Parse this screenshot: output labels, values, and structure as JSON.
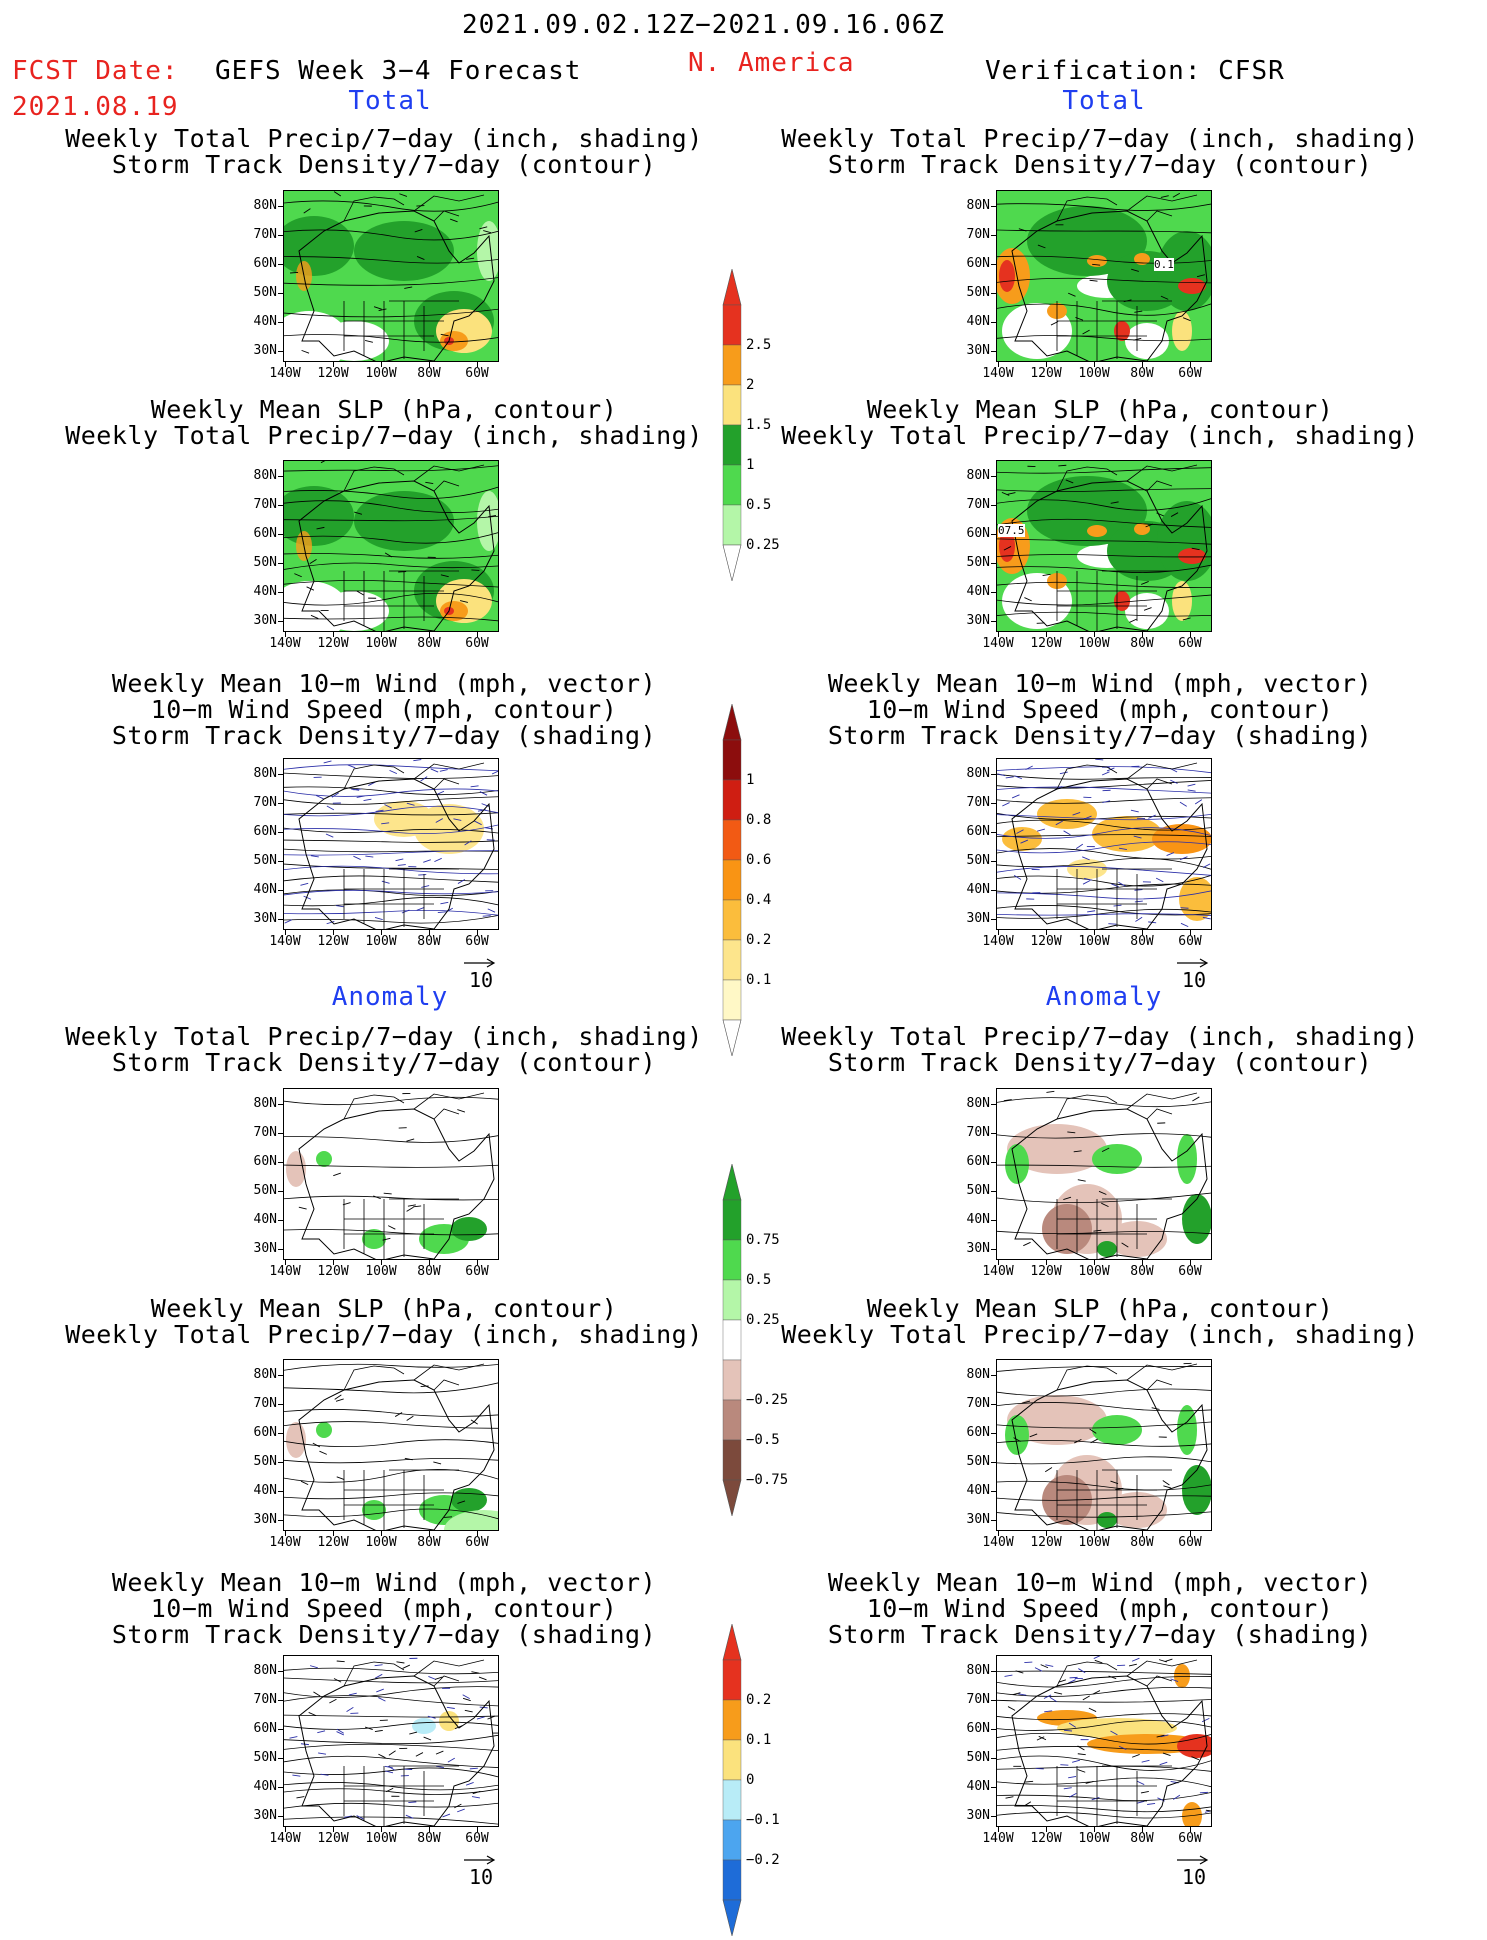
{
  "header": {
    "date_range": "2021.09.02.12Z−2021.09.16.06Z",
    "fcst_label": "FCST Date:",
    "fcst_date": "2021.08.19",
    "forecast_title": "GEFS Week 3−4 Forecast",
    "region": "N. America",
    "verification": "Verification: CFSR"
  },
  "sections": {
    "total": "Total",
    "anomaly": "Anomaly"
  },
  "titles": {
    "precip_storm": [
      "Weekly Total Precip/7−day (inch, shading)",
      "Storm Track Density/7−day (contour)"
    ],
    "slp_precip": [
      "Weekly Mean SLP (hPa, contour)",
      "Weekly Total Precip/7−day (inch, shading)"
    ],
    "wind_storm": [
      "Weekly Mean 10−m Wind (mph, vector)",
      "10−m Wind Speed (mph, contour)",
      "Storm Track Density/7−day (shading)"
    ]
  },
  "axes": {
    "lat_labels": [
      "80N",
      "70N",
      "60N",
      "50N",
      "40N",
      "30N"
    ],
    "lon_labels": [
      "140W",
      "120W",
      "100W",
      "80W",
      "60W"
    ]
  },
  "map_labels": {
    "storm_contour": "0.1",
    "slp_contour": "07.5"
  },
  "vector_reference": "10",
  "colorbars": {
    "precip_total": {
      "labels": [
        "2.5",
        "2",
        "1.5",
        "1",
        "0.5",
        "0.25"
      ],
      "colors": [
        "#e5321f",
        "#f79c1b",
        "#fbe27d",
        "#23a12b",
        "#4fd94e",
        "#b4f6a8"
      ]
    },
    "storm_total": {
      "labels": [
        "1",
        "0.8",
        "0.6",
        "0.4",
        "0.2",
        "0.1"
      ],
      "colors": [
        "#8c0d0d",
        "#cf1e12",
        "#f25a14",
        "#f99414",
        "#fbbd3c",
        "#fde58c",
        "#fff8c6"
      ]
    },
    "precip_anom": {
      "labels": [
        "0.75",
        "0.5",
        "0.25",
        "−0.25",
        "−0.5",
        "−0.75"
      ],
      "colors": [
        "#23a12b",
        "#4fd94e",
        "#b4f6a8",
        "#ffffff",
        "#e4c3b9",
        "#b9897d",
        "#7c4a3c"
      ]
    },
    "storm_anom": {
      "labels": [
        "0.2",
        "0.1",
        "0",
        "−0.1",
        "−0.2"
      ],
      "colors": [
        "#e5321f",
        "#f79c1b",
        "#fbe27d",
        "#b8ecf7",
        "#4ca5ef",
        "#1e6cd8"
      ]
    }
  }
}
